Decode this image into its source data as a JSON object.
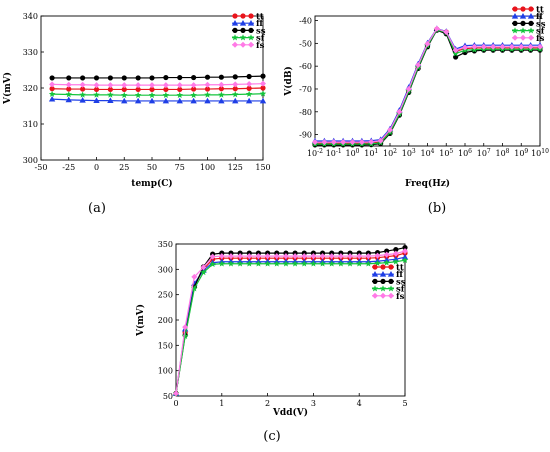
{
  "legend_order": [
    "tt",
    "ff",
    "ss",
    "sf",
    "fs"
  ],
  "series_style": {
    "tt": {
      "color": "#e8141c",
      "marker": "circle"
    },
    "ff": {
      "color": "#1f3fe6",
      "marker": "triangle"
    },
    "ss": {
      "color": "#000000",
      "marker": "circle"
    },
    "sf": {
      "color": "#14c43c",
      "marker": "star"
    },
    "fs": {
      "color": "#ff7ae6",
      "marker": "diamond"
    }
  },
  "chart_data": [
    {
      "type": "line",
      "panel_label": "(a)",
      "xlabel": "temp(C)",
      "ylabel": "V(mV)",
      "xlim": [
        -50,
        150
      ],
      "ylim": [
        300,
        340
      ],
      "xticks": [
        -50,
        -25,
        0,
        25,
        50,
        75,
        100,
        125,
        150
      ],
      "xtick_labels": [
        "-50",
        "-25",
        "0",
        "25",
        "50",
        "75",
        "100",
        "125",
        "150"
      ],
      "yticks": [
        300,
        310,
        320,
        330,
        340
      ],
      "ytick_labels": [
        "300",
        "310",
        "320",
        "330",
        "340"
      ],
      "x": [
        -40,
        -25,
        -12.5,
        0,
        12.5,
        25,
        37.5,
        50,
        62.5,
        75,
        87.5,
        100,
        112.5,
        125,
        137.5,
        150
      ],
      "series": [
        {
          "name": "tt",
          "values": [
            319.8,
            319.7,
            319.7,
            319.6,
            319.6,
            319.6,
            319.6,
            319.6,
            319.6,
            319.6,
            319.7,
            319.7,
            319.8,
            319.8,
            319.9,
            320.0
          ]
        },
        {
          "name": "ff",
          "values": [
            316.9,
            316.7,
            316.6,
            316.5,
            316.5,
            316.4,
            316.4,
            316.4,
            316.4,
            316.4,
            316.4,
            316.4,
            316.4,
            316.4,
            316.4,
            316.4
          ]
        },
        {
          "name": "ss",
          "values": [
            322.8,
            322.8,
            322.8,
            322.8,
            322.8,
            322.8,
            322.8,
            322.8,
            322.9,
            322.9,
            322.9,
            323.0,
            323.0,
            323.1,
            323.2,
            323.3
          ]
        },
        {
          "name": "sf",
          "values": [
            318.3,
            318.2,
            318.1,
            318.1,
            318.1,
            318.0,
            318.0,
            318.0,
            318.0,
            318.0,
            318.0,
            318.1,
            318.1,
            318.2,
            318.3,
            318.4
          ]
        },
        {
          "name": "fs",
          "values": [
            321.0,
            320.9,
            320.9,
            320.8,
            320.8,
            320.8,
            320.8,
            320.8,
            320.8,
            320.8,
            320.8,
            320.9,
            320.9,
            321.0,
            321.1,
            321.2
          ]
        }
      ],
      "legend_position": "top-right",
      "grid": false
    },
    {
      "type": "line",
      "panel_label": "(b)",
      "xlabel": "Freq(Hz)",
      "ylabel": "V(dB)",
      "xscale": "log",
      "xlim": [
        0.01,
        10000000000
      ],
      "ylim": [
        -95,
        -38
      ],
      "xticks": [
        0.01,
        0.1,
        1,
        10,
        100,
        1000,
        10000,
        100000,
        1000000,
        10000000,
        100000000,
        1000000000,
        10000000000
      ],
      "xtick_labels": [
        "10-2",
        "10-1",
        "100",
        "101",
        "102",
        "103",
        "104",
        "105",
        "106",
        "107",
        "108",
        "109",
        "1010"
      ],
      "yticks": [
        -90,
        -80,
        -70,
        -60,
        -50,
        -40
      ],
      "ytick_labels": [
        "-90",
        "-80",
        "-70",
        "-60",
        "-50",
        "-40"
      ],
      "x": [
        0.01,
        0.0316,
        0.1,
        0.316,
        1,
        3.16,
        10,
        31.6,
        100,
        316,
        1000,
        3160,
        10000,
        31600,
        100000,
        316000,
        1000000,
        3160000,
        10000000,
        31600000,
        100000000,
        316000000,
        1000000000,
        3160000000,
        10000000000
      ],
      "series": [
        {
          "name": "tt",
          "values": [
            -93.8,
            -93.8,
            -93.8,
            -93.8,
            -93.8,
            -93.8,
            -93.7,
            -93.3,
            -88.5,
            -80.5,
            -70.5,
            -60.0,
            -50.5,
            -43.8,
            -45.0,
            -53.5,
            -52.3,
            -52.0,
            -52.0,
            -52.0,
            -52.0,
            -52.0,
            -52.0,
            -52.0,
            -52.0
          ]
        },
        {
          "name": "ff",
          "values": [
            -92.8,
            -92.8,
            -92.8,
            -92.8,
            -92.8,
            -92.8,
            -92.7,
            -92.2,
            -87.5,
            -79.3,
            -69.3,
            -59.0,
            -49.8,
            -43.5,
            -44.8,
            -52.5,
            -51.0,
            -50.8,
            -50.8,
            -50.8,
            -50.8,
            -50.8,
            -50.8,
            -50.8,
            -50.8
          ]
        },
        {
          "name": "ss",
          "values": [
            -94.5,
            -94.5,
            -94.5,
            -94.5,
            -94.5,
            -94.5,
            -94.4,
            -94.0,
            -89.5,
            -81.5,
            -71.5,
            -61.0,
            -51.5,
            -44.2,
            -45.8,
            -56.0,
            -54.0,
            -53.3,
            -53.0,
            -53.0,
            -53.0,
            -53.0,
            -53.0,
            -53.0,
            -53.0
          ]
        },
        {
          "name": "sf",
          "values": [
            -94.2,
            -94.2,
            -94.2,
            -94.2,
            -94.2,
            -94.2,
            -94.1,
            -93.6,
            -89.0,
            -81.0,
            -71.0,
            -60.5,
            -51.0,
            -44.0,
            -45.3,
            -54.5,
            -53.0,
            -52.8,
            -52.6,
            -52.6,
            -52.6,
            -52.6,
            -52.6,
            -52.6,
            -52.6
          ]
        },
        {
          "name": "fs",
          "values": [
            -93.3,
            -93.3,
            -93.3,
            -93.3,
            -93.3,
            -93.3,
            -93.2,
            -92.7,
            -88.0,
            -80.0,
            -70.0,
            -59.5,
            -50.2,
            -43.6,
            -45.0,
            -53.0,
            -51.8,
            -51.5,
            -51.5,
            -51.5,
            -51.5,
            -51.5,
            -51.5,
            -51.5,
            -51.5
          ]
        }
      ],
      "legend_position": "top-right",
      "grid": false
    },
    {
      "type": "line",
      "panel_label": "(c)",
      "xlabel": "Vdd(V)",
      "ylabel": "V(mV)",
      "xlim": [
        0,
        5
      ],
      "ylim": [
        50,
        350
      ],
      "xticks": [
        0,
        1,
        2,
        3,
        4,
        5
      ],
      "xtick_labels": [
        "0",
        "1",
        "2",
        "3",
        "4",
        "5"
      ],
      "yticks": [
        50,
        100,
        150,
        200,
        250,
        300,
        350
      ],
      "ytick_labels": [
        "50",
        "100",
        "150",
        "200",
        "250",
        "300",
        "350"
      ],
      "x": [
        0,
        0.2,
        0.4,
        0.6,
        0.8,
        1.0,
        1.2,
        1.4,
        1.6,
        1.8,
        2.0,
        2.2,
        2.4,
        2.6,
        2.8,
        3.0,
        3.2,
        3.4,
        3.6,
        3.8,
        4.0,
        4.2,
        4.4,
        4.6,
        4.8,
        5.0
      ],
      "series": [
        {
          "name": "tt",
          "values": [
            55,
            175,
            268,
            300,
            320,
            322,
            322,
            322,
            322,
            322,
            322,
            322,
            322,
            322,
            322,
            322,
            322,
            322,
            322,
            322,
            322,
            322,
            323,
            325,
            327,
            332
          ]
        },
        {
          "name": "ff",
          "values": [
            55,
            182,
            272,
            298,
            313,
            315,
            315,
            315,
            315,
            315,
            315,
            315,
            315,
            315,
            315,
            315,
            315,
            315,
            315,
            315,
            315,
            315,
            316,
            318,
            320,
            324
          ]
        },
        {
          "name": "ss",
          "values": [
            55,
            170,
            265,
            305,
            330,
            332,
            332,
            332,
            332,
            332,
            332,
            332,
            332,
            332,
            332,
            332,
            332,
            332,
            332,
            332,
            332,
            332,
            333,
            336,
            339,
            343
          ]
        },
        {
          "name": "sf",
          "values": [
            55,
            168,
            262,
            294,
            310,
            311,
            311,
            311,
            311,
            311,
            311,
            311,
            311,
            311,
            311,
            311,
            311,
            311,
            311,
            311,
            311,
            311,
            312,
            313,
            315,
            318
          ]
        },
        {
          "name": "fs",
          "values": [
            55,
            186,
            285,
            304,
            325,
            326,
            326,
            326,
            326,
            326,
            326,
            326,
            326,
            326,
            326,
            326,
            326,
            326,
            326,
            326,
            326,
            326,
            327,
            329,
            331,
            336
          ]
        }
      ],
      "legend_position": "top-right",
      "grid": false
    }
  ]
}
